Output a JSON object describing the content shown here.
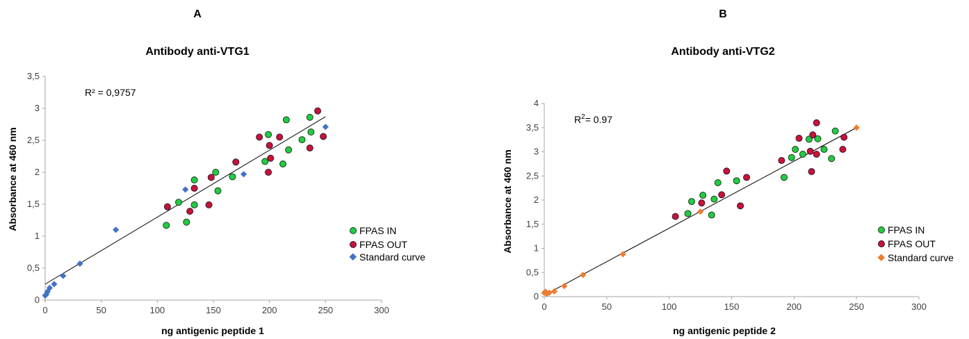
{
  "chart_data": [
    {
      "type": "scatter",
      "panel_label": "A",
      "title": "Antibody anti-VTG1",
      "xlabel": "ng antigenic peptide 1",
      "ylabel": "Absorbance at 460 nm",
      "xlim": [
        0,
        300
      ],
      "ylim": [
        0,
        3.5
      ],
      "x_ticks": [
        "0",
        "50",
        "100",
        "150",
        "200",
        "250",
        "300"
      ],
      "y_ticks": [
        "0",
        "0,5",
        "1",
        "1,5",
        "2",
        "2,5",
        "3",
        "3,5"
      ],
      "annotation": {
        "text": "R² = 0,9757"
      },
      "trendline": {
        "x": [
          0,
          250
        ],
        "y": [
          0.25,
          2.87
        ]
      },
      "legend_position": "right",
      "series": [
        {
          "name": "FPAS IN",
          "marker": "circle",
          "color": "#22cc44",
          "points": [
            [
              108,
              1.17
            ],
            [
              119,
              1.53
            ],
            [
              126,
              1.22
            ],
            [
              133,
              1.88
            ],
            [
              133,
              1.49
            ],
            [
              152,
              2.0
            ],
            [
              154,
              1.71
            ],
            [
              167,
              1.93
            ],
            [
              196,
              2.17
            ],
            [
              199,
              2.59
            ],
            [
              212,
              2.13
            ],
            [
              215,
              2.82
            ],
            [
              217,
              2.35
            ],
            [
              229,
              2.51
            ],
            [
              236,
              2.86
            ],
            [
              237,
              2.63
            ]
          ]
        },
        {
          "name": "FPAS OUT",
          "marker": "circle",
          "color": "#cc1133",
          "points": [
            [
              109,
              1.46
            ],
            [
              129,
              1.39
            ],
            [
              133,
              1.75
            ],
            [
              146,
              1.49
            ],
            [
              148,
              1.92
            ],
            [
              170,
              2.16
            ],
            [
              191,
              2.55
            ],
            [
              199,
              2.0
            ],
            [
              200,
              2.42
            ],
            [
              201,
              2.22
            ],
            [
              209,
              2.55
            ],
            [
              236,
              2.38
            ],
            [
              243,
              2.96
            ],
            [
              248,
              2.56
            ]
          ]
        },
        {
          "name": "Standard curve",
          "marker": "diamond",
          "color": "#4472c4",
          "points": [
            [
              0,
              0.07
            ],
            [
              1,
              0.09
            ],
            [
              2,
              0.13
            ],
            [
              4,
              0.19
            ],
            [
              8,
              0.25
            ],
            [
              16,
              0.38
            ],
            [
              31,
              0.57
            ],
            [
              63,
              1.1
            ],
            [
              125,
              1.73
            ],
            [
              177,
              1.97
            ],
            [
              250,
              2.71
            ]
          ]
        }
      ]
    },
    {
      "type": "scatter",
      "panel_label": "B",
      "title": "Antibody anti-VTG2",
      "xlabel": "ng antigenic peptide 2",
      "ylabel": "Absorbance at 460 nm",
      "xlim": [
        0,
        300
      ],
      "ylim": [
        0,
        4
      ],
      "x_ticks": [
        "0",
        "50",
        "100",
        "150",
        "200",
        "250",
        "300"
      ],
      "y_ticks": [
        "0",
        "0,5",
        "1",
        "1,5",
        "2",
        "2,5",
        "3",
        "3,5",
        "4"
      ],
      "annotation": {
        "text": "R",
        "sup": "2",
        "rest": "= 0.97"
      },
      "trendline": {
        "x": [
          0,
          250
        ],
        "y": [
          0.03,
          3.5
        ]
      },
      "legend_position": "right",
      "series": [
        {
          "name": "FPAS IN",
          "marker": "circle",
          "color": "#22cc44",
          "points": [
            [
              115,
              1.72
            ],
            [
              118,
              1.97
            ],
            [
              127,
              2.1
            ],
            [
              134,
              1.69
            ],
            [
              136,
              2.02
            ],
            [
              139,
              2.36
            ],
            [
              154,
              2.4
            ],
            [
              192,
              2.47
            ],
            [
              198,
              2.88
            ],
            [
              201,
              3.05
            ],
            [
              207,
              2.95
            ],
            [
              212,
              3.26
            ],
            [
              219,
              3.27
            ],
            [
              224,
              3.05
            ],
            [
              230,
              2.86
            ],
            [
              233,
              3.43
            ]
          ]
        },
        {
          "name": "FPAS OUT",
          "marker": "circle",
          "color": "#cc1133",
          "points": [
            [
              105,
              1.66
            ],
            [
              126,
              1.94
            ],
            [
              142,
              2.11
            ],
            [
              146,
              2.6
            ],
            [
              157,
              1.88
            ],
            [
              162,
              2.47
            ],
            [
              190,
              2.82
            ],
            [
              204,
              3.28
            ],
            [
              213,
              3.01
            ],
            [
              215,
              3.35
            ],
            [
              214,
              2.59
            ],
            [
              218,
              3.6
            ],
            [
              218,
              2.95
            ],
            [
              239,
              3.05
            ],
            [
              240,
              3.3
            ]
          ]
        },
        {
          "name": "Standard curve",
          "marker": "diamond",
          "color": "#ed7d31",
          "points": [
            [
              0,
              0.08
            ],
            [
              1,
              0.1
            ],
            [
              2,
              0.06
            ],
            [
              4,
              0.08
            ],
            [
              8,
              0.11
            ],
            [
              16,
              0.22
            ],
            [
              31,
              0.45
            ],
            [
              63,
              0.88
            ],
            [
              125,
              1.76
            ],
            [
              250,
              3.5
            ]
          ]
        }
      ]
    }
  ]
}
